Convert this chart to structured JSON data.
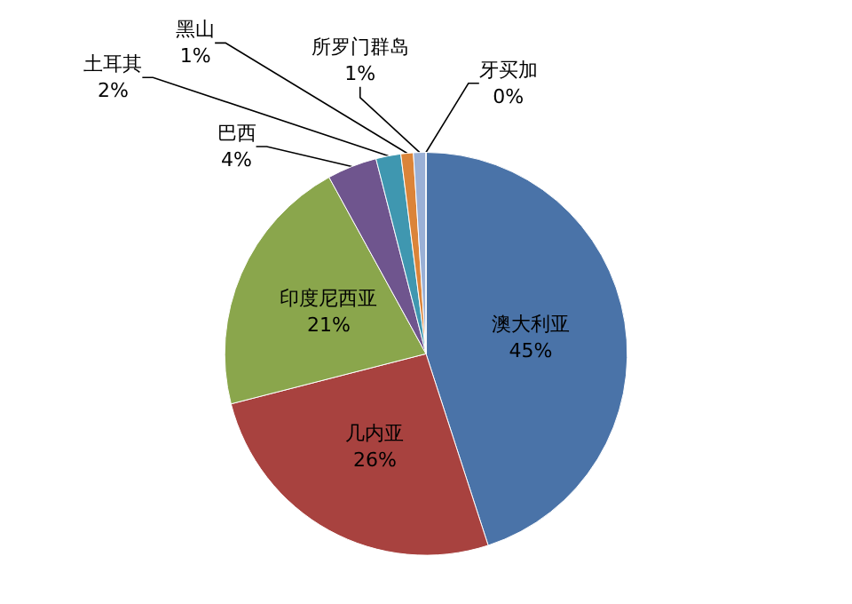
{
  "chart_data": {
    "type": "pie",
    "categories": [
      "澳大利亚",
      "几内亚",
      "印度尼西亚",
      "巴西",
      "土耳其",
      "黑山",
      "所罗门群岛",
      "牙买加"
    ],
    "values": [
      45,
      26,
      21,
      4,
      2,
      1,
      1,
      0
    ],
    "value_labels": [
      "45%",
      "26%",
      "21%",
      "4%",
      "2%",
      "1%",
      "1%",
      "0%"
    ],
    "colors": [
      "#4a73a8",
      "#a8423f",
      "#8aa64c",
      "#6f558e",
      "#3f97b0",
      "#db8439",
      "#9ab0d6",
      "#d88f8c"
    ],
    "data_labels": true,
    "legend": false
  }
}
